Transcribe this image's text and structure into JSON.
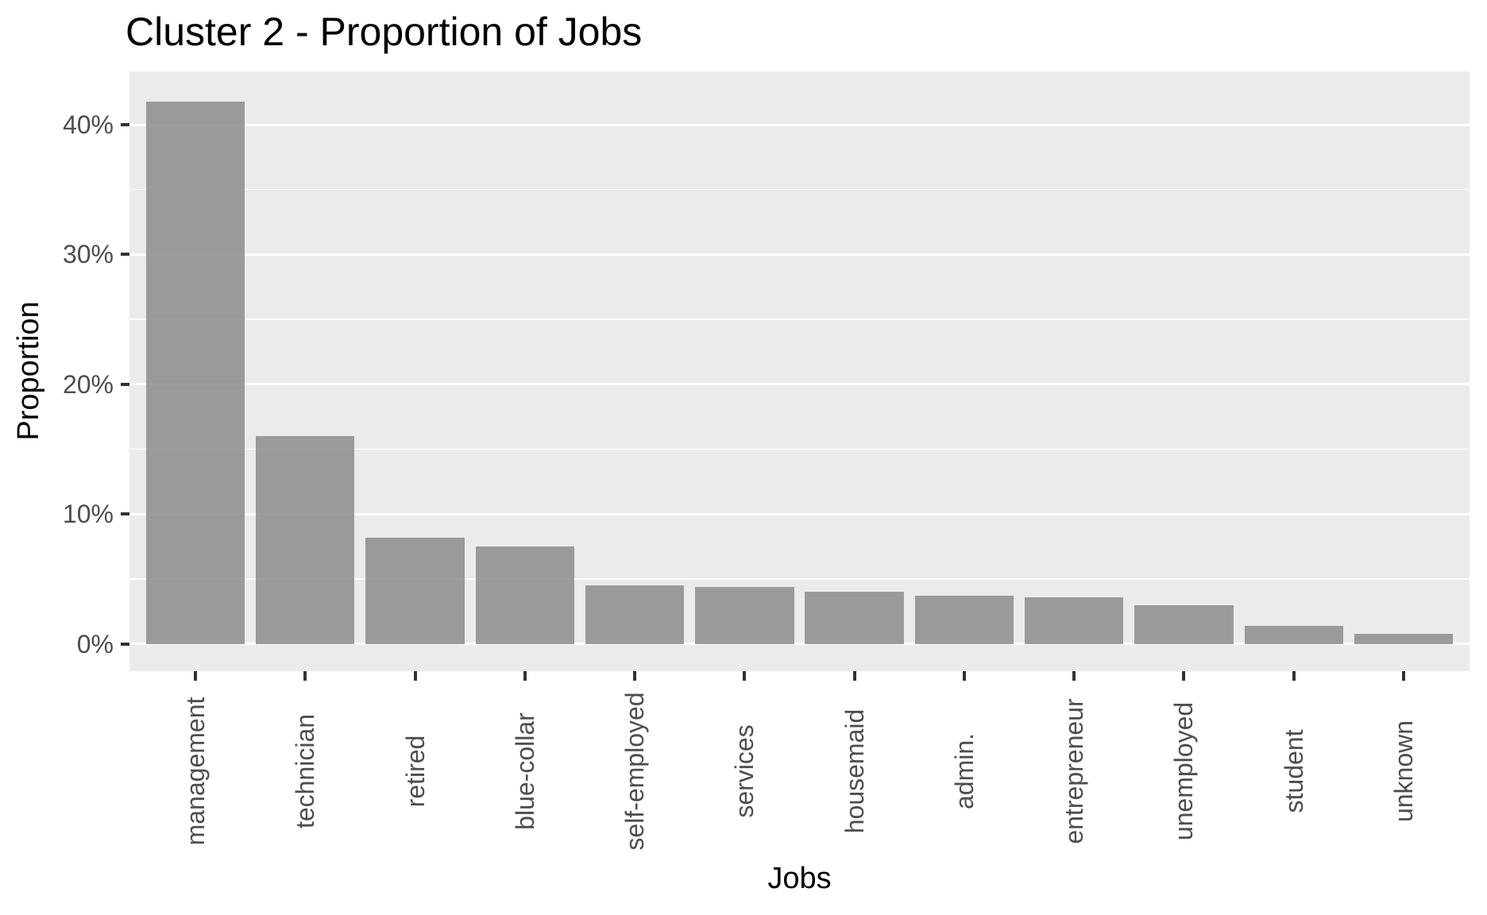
{
  "chart_title": "Cluster 2 - Proportion of Jobs",
  "chart_data": {
    "type": "bar",
    "title": "Cluster 2 - Proportion of Jobs",
    "xlabel": "Jobs",
    "ylabel": "Proportion",
    "value_format": "percent",
    "categories": [
      "management",
      "technician",
      "retired",
      "blue-collar",
      "self-employed",
      "services",
      "housemaid",
      "admin.",
      "entrepreneur",
      "unemployed",
      "student",
      "unknown"
    ],
    "values": [
      41.8,
      16.0,
      8.2,
      7.5,
      4.5,
      4.4,
      4.0,
      3.7,
      3.6,
      3.0,
      1.4,
      0.8
    ],
    "y_ticks": [
      {
        "value": 0,
        "label": "0%"
      },
      {
        "value": 10,
        "label": "10%"
      },
      {
        "value": 20,
        "label": "20%"
      },
      {
        "value": 30,
        "label": "30%"
      },
      {
        "value": 40,
        "label": "40%"
      }
    ],
    "y_minor_gridlines": [
      5,
      15,
      25,
      35
    ],
    "ylim": [
      -2.1,
      44.1
    ],
    "bar_rel_width": 0.9,
    "grid": true,
    "legend": "none",
    "style": "ggplot-gray-theme",
    "colors": {
      "bar": "#8c8c8c",
      "bar_opacity": 0.85,
      "bar_rendered": "#9a9a9a",
      "panel": "#ebebeb",
      "grid": "#ffffff",
      "tick_label": "#4d4d4d",
      "tick_mark": "#333333",
      "title": "#000000",
      "axis_title": "#000000",
      "background": "#ffffff"
    }
  }
}
